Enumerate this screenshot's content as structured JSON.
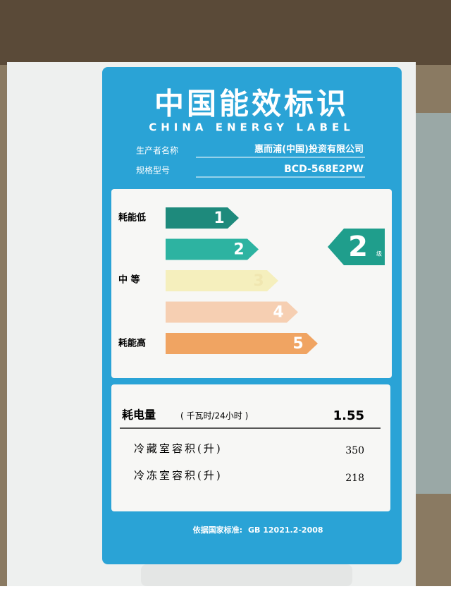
{
  "header": {
    "title": "中国能效标识",
    "subtitle": "CHINA ENERGY LABEL",
    "manufacturer_label": "生产者名称",
    "manufacturer": "惠而浦(中国)投资有限公司",
    "model_label": "规格型号",
    "model": "BCD-568E2PW"
  },
  "scale": {
    "grades": [
      "1",
      "2",
      "3",
      "4",
      "5"
    ],
    "side_labels": [
      "耗能低",
      "中 等",
      "耗能高"
    ],
    "rating": "2",
    "rating_unit": "级"
  },
  "table": {
    "rows": [
      [
        "耗电量",
        "( 千瓦时/24小时 )",
        "1.55"
      ],
      [
        "冷藏室容积(升)",
        "350"
      ],
      [
        "冷冻室容积(升)",
        "218"
      ]
    ]
  },
  "footer": {
    "standard_label": "依据国家标准:",
    "standard": "GB 12021.2-2008"
  }
}
